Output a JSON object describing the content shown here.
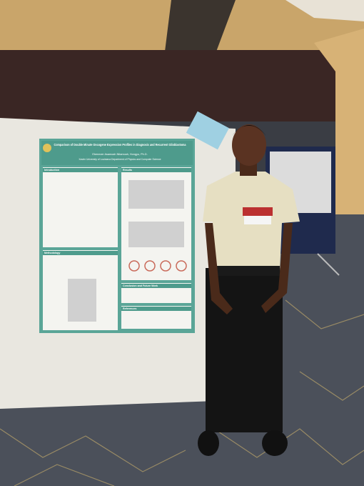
{
  "poster": {
    "title": "Comparison of Double Minute Oncogene Expression Profiles in Diagnosis and Recurrent Glioblastoma",
    "authors": "Ebenezer Asamoah Ntiamoah, Hongyu, Ph.D.",
    "affiliation": "Xavier University of Louisiana Department of Physics and Computer Science",
    "sections": [
      "Introduction",
      "Results",
      "Methodology",
      "Conclusion and Future Work",
      "References"
    ]
  }
}
